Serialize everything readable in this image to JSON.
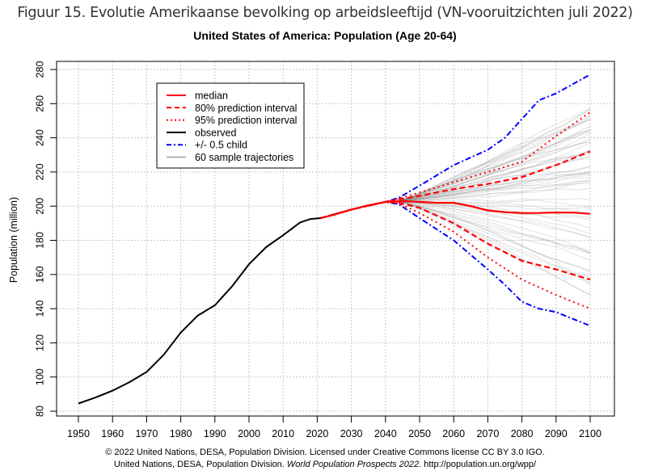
{
  "figure_title": "Figuur 15. Evolutie Amerikaanse bevolking op arbeidsleeftijd (VN-vooruitzichten juli 2022)",
  "credits": {
    "line1": "© 2022 United Nations, DESA, Population Division. Licensed under Creative Commons license CC BY 3.0 IGO.",
    "line2_prefix": "United Nations, DESA, Population Division. ",
    "line2_italic": "World Population Prospects 2022",
    "line2_suffix": ". http://population.un.org/wpp/"
  },
  "chart_data": {
    "type": "line",
    "title": "United States of America: Population (Age 20-64)",
    "xlabel": "",
    "ylabel": "Population (million)",
    "xlim": [
      1950,
      2100
    ],
    "ylim": [
      80,
      280
    ],
    "xticks": [
      1950,
      1960,
      1970,
      1980,
      1990,
      2000,
      2010,
      2020,
      2030,
      2040,
      2050,
      2060,
      2070,
      2080,
      2090,
      2100
    ],
    "yticks": [
      80,
      100,
      120,
      140,
      160,
      180,
      200,
      220,
      240,
      260,
      280
    ],
    "grid": true,
    "legend_position": "top-left",
    "legend": [
      {
        "label": "median",
        "color": "#ff0000",
        "style": "solid"
      },
      {
        "label": "80% prediction interval",
        "color": "#ff0000",
        "style": "dashed"
      },
      {
        "label": "95% prediction interval",
        "color": "#ff0000",
        "style": "dotted"
      },
      {
        "label": "observed",
        "color": "#000000",
        "style": "solid"
      },
      {
        "label": "+/- 0.5 child",
        "color": "#0000ff",
        "style": "dashdot"
      },
      {
        "label": "60 sample trajectories",
        "color": "#b0b0b0",
        "style": "solid"
      }
    ],
    "series": [
      {
        "name": "observed",
        "x": [
          1950,
          1955,
          1960,
          1965,
          1970,
          1975,
          1980,
          1985,
          1990,
          1995,
          2000,
          2005,
          2010,
          2015,
          2018,
          2021
        ],
        "values": [
          84.5,
          88,
          92,
          97,
          103,
          113,
          126,
          136,
          142,
          153,
          166,
          176,
          183,
          190.5,
          192.5,
          193
        ]
      },
      {
        "name": "median",
        "x": [
          2021,
          2025,
          2030,
          2035,
          2040,
          2045,
          2050,
          2055,
          2060,
          2065,
          2070,
          2075,
          2080,
          2085,
          2090,
          2095,
          2100
        ],
        "values": [
          193,
          195,
          198,
          200.5,
          202.5,
          203,
          202.5,
          202,
          202,
          200,
          197.5,
          196.5,
          196,
          196,
          196.3,
          196.2,
          195.5
        ]
      },
      {
        "name": "80% upper",
        "x": [
          2021,
          2030,
          2040,
          2044,
          2050,
          2060,
          2070,
          2080,
          2090,
          2100
        ],
        "values": [
          193,
          198,
          202.5,
          204,
          206,
          210,
          213,
          217,
          224,
          232
        ]
      },
      {
        "name": "80% lower",
        "x": [
          2021,
          2030,
          2040,
          2044,
          2050,
          2060,
          2070,
          2080,
          2090,
          2100
        ],
        "values": [
          193,
          198,
          202.5,
          202,
          199,
          190,
          178,
          168,
          163,
          157
        ]
      },
      {
        "name": "95% upper",
        "x": [
          2021,
          2030,
          2040,
          2044,
          2050,
          2060,
          2070,
          2080,
          2090,
          2100
        ],
        "values": [
          193,
          198,
          202.5,
          204.5,
          208,
          214,
          220,
          226,
          241,
          255
        ]
      },
      {
        "name": "95% lower",
        "x": [
          2021,
          2030,
          2040,
          2044,
          2050,
          2060,
          2070,
          2080,
          2090,
          2100
        ],
        "values": [
          193,
          198,
          202.5,
          201.5,
          196,
          185,
          170,
          157,
          148,
          140
        ]
      },
      {
        "name": "+0.5 child",
        "x": [
          2021,
          2030,
          2040,
          2044,
          2050,
          2060,
          2070,
          2075,
          2080,
          2085,
          2090,
          2100
        ],
        "values": [
          193,
          198,
          202.5,
          205,
          212,
          224,
          233,
          240,
          251,
          262,
          266,
          277
        ]
      },
      {
        "name": "-0.5 child",
        "x": [
          2021,
          2030,
          2040,
          2044,
          2050,
          2060,
          2070,
          2075,
          2080,
          2085,
          2090,
          2100
        ],
        "values": [
          193,
          198,
          202.5,
          201,
          193,
          180,
          163,
          154,
          144,
          140,
          138,
          130
        ]
      }
    ],
    "sample_trajectories": {
      "count": 60,
      "start_year": 2044,
      "start_value": 203,
      "range_2100": [
        145,
        259
      ]
    }
  }
}
